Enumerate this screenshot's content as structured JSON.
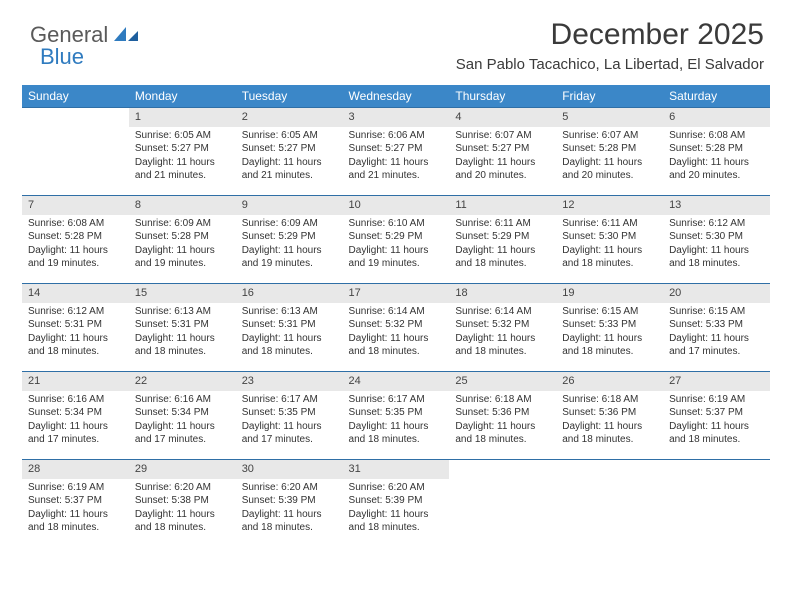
{
  "logo": {
    "text_gray": "General",
    "text_blue": "Blue",
    "shape_color": "#2f7bbf"
  },
  "header": {
    "title": "December 2025",
    "location": "San Pablo Tacachico, La Libertad, El Salvador"
  },
  "colors": {
    "header_bg": "#3b87c8",
    "header_text": "#ffffff",
    "daynum_bg": "#e8e8e8",
    "border": "#2f6fa6",
    "text": "#333333"
  },
  "weekdays": [
    "Sunday",
    "Monday",
    "Tuesday",
    "Wednesday",
    "Thursday",
    "Friday",
    "Saturday"
  ],
  "weeks": [
    [
      {
        "n": "",
        "sr": "",
        "ss": "",
        "dl": ""
      },
      {
        "n": "1",
        "sr": "Sunrise: 6:05 AM",
        "ss": "Sunset: 5:27 PM",
        "dl": "Daylight: 11 hours and 21 minutes."
      },
      {
        "n": "2",
        "sr": "Sunrise: 6:05 AM",
        "ss": "Sunset: 5:27 PM",
        "dl": "Daylight: 11 hours and 21 minutes."
      },
      {
        "n": "3",
        "sr": "Sunrise: 6:06 AM",
        "ss": "Sunset: 5:27 PM",
        "dl": "Daylight: 11 hours and 21 minutes."
      },
      {
        "n": "4",
        "sr": "Sunrise: 6:07 AM",
        "ss": "Sunset: 5:27 PM",
        "dl": "Daylight: 11 hours and 20 minutes."
      },
      {
        "n": "5",
        "sr": "Sunrise: 6:07 AM",
        "ss": "Sunset: 5:28 PM",
        "dl": "Daylight: 11 hours and 20 minutes."
      },
      {
        "n": "6",
        "sr": "Sunrise: 6:08 AM",
        "ss": "Sunset: 5:28 PM",
        "dl": "Daylight: 11 hours and 20 minutes."
      }
    ],
    [
      {
        "n": "7",
        "sr": "Sunrise: 6:08 AM",
        "ss": "Sunset: 5:28 PM",
        "dl": "Daylight: 11 hours and 19 minutes."
      },
      {
        "n": "8",
        "sr": "Sunrise: 6:09 AM",
        "ss": "Sunset: 5:28 PM",
        "dl": "Daylight: 11 hours and 19 minutes."
      },
      {
        "n": "9",
        "sr": "Sunrise: 6:09 AM",
        "ss": "Sunset: 5:29 PM",
        "dl": "Daylight: 11 hours and 19 minutes."
      },
      {
        "n": "10",
        "sr": "Sunrise: 6:10 AM",
        "ss": "Sunset: 5:29 PM",
        "dl": "Daylight: 11 hours and 19 minutes."
      },
      {
        "n": "11",
        "sr": "Sunrise: 6:11 AM",
        "ss": "Sunset: 5:29 PM",
        "dl": "Daylight: 11 hours and 18 minutes."
      },
      {
        "n": "12",
        "sr": "Sunrise: 6:11 AM",
        "ss": "Sunset: 5:30 PM",
        "dl": "Daylight: 11 hours and 18 minutes."
      },
      {
        "n": "13",
        "sr": "Sunrise: 6:12 AM",
        "ss": "Sunset: 5:30 PM",
        "dl": "Daylight: 11 hours and 18 minutes."
      }
    ],
    [
      {
        "n": "14",
        "sr": "Sunrise: 6:12 AM",
        "ss": "Sunset: 5:31 PM",
        "dl": "Daylight: 11 hours and 18 minutes."
      },
      {
        "n": "15",
        "sr": "Sunrise: 6:13 AM",
        "ss": "Sunset: 5:31 PM",
        "dl": "Daylight: 11 hours and 18 minutes."
      },
      {
        "n": "16",
        "sr": "Sunrise: 6:13 AM",
        "ss": "Sunset: 5:31 PM",
        "dl": "Daylight: 11 hours and 18 minutes."
      },
      {
        "n": "17",
        "sr": "Sunrise: 6:14 AM",
        "ss": "Sunset: 5:32 PM",
        "dl": "Daylight: 11 hours and 18 minutes."
      },
      {
        "n": "18",
        "sr": "Sunrise: 6:14 AM",
        "ss": "Sunset: 5:32 PM",
        "dl": "Daylight: 11 hours and 18 minutes."
      },
      {
        "n": "19",
        "sr": "Sunrise: 6:15 AM",
        "ss": "Sunset: 5:33 PM",
        "dl": "Daylight: 11 hours and 18 minutes."
      },
      {
        "n": "20",
        "sr": "Sunrise: 6:15 AM",
        "ss": "Sunset: 5:33 PM",
        "dl": "Daylight: 11 hours and 17 minutes."
      }
    ],
    [
      {
        "n": "21",
        "sr": "Sunrise: 6:16 AM",
        "ss": "Sunset: 5:34 PM",
        "dl": "Daylight: 11 hours and 17 minutes."
      },
      {
        "n": "22",
        "sr": "Sunrise: 6:16 AM",
        "ss": "Sunset: 5:34 PM",
        "dl": "Daylight: 11 hours and 17 minutes."
      },
      {
        "n": "23",
        "sr": "Sunrise: 6:17 AM",
        "ss": "Sunset: 5:35 PM",
        "dl": "Daylight: 11 hours and 17 minutes."
      },
      {
        "n": "24",
        "sr": "Sunrise: 6:17 AM",
        "ss": "Sunset: 5:35 PM",
        "dl": "Daylight: 11 hours and 18 minutes."
      },
      {
        "n": "25",
        "sr": "Sunrise: 6:18 AM",
        "ss": "Sunset: 5:36 PM",
        "dl": "Daylight: 11 hours and 18 minutes."
      },
      {
        "n": "26",
        "sr": "Sunrise: 6:18 AM",
        "ss": "Sunset: 5:36 PM",
        "dl": "Daylight: 11 hours and 18 minutes."
      },
      {
        "n": "27",
        "sr": "Sunrise: 6:19 AM",
        "ss": "Sunset: 5:37 PM",
        "dl": "Daylight: 11 hours and 18 minutes."
      }
    ],
    [
      {
        "n": "28",
        "sr": "Sunrise: 6:19 AM",
        "ss": "Sunset: 5:37 PM",
        "dl": "Daylight: 11 hours and 18 minutes."
      },
      {
        "n": "29",
        "sr": "Sunrise: 6:20 AM",
        "ss": "Sunset: 5:38 PM",
        "dl": "Daylight: 11 hours and 18 minutes."
      },
      {
        "n": "30",
        "sr": "Sunrise: 6:20 AM",
        "ss": "Sunset: 5:39 PM",
        "dl": "Daylight: 11 hours and 18 minutes."
      },
      {
        "n": "31",
        "sr": "Sunrise: 6:20 AM",
        "ss": "Sunset: 5:39 PM",
        "dl": "Daylight: 11 hours and 18 minutes."
      },
      {
        "n": "",
        "sr": "",
        "ss": "",
        "dl": ""
      },
      {
        "n": "",
        "sr": "",
        "ss": "",
        "dl": ""
      },
      {
        "n": "",
        "sr": "",
        "ss": "",
        "dl": ""
      }
    ]
  ]
}
